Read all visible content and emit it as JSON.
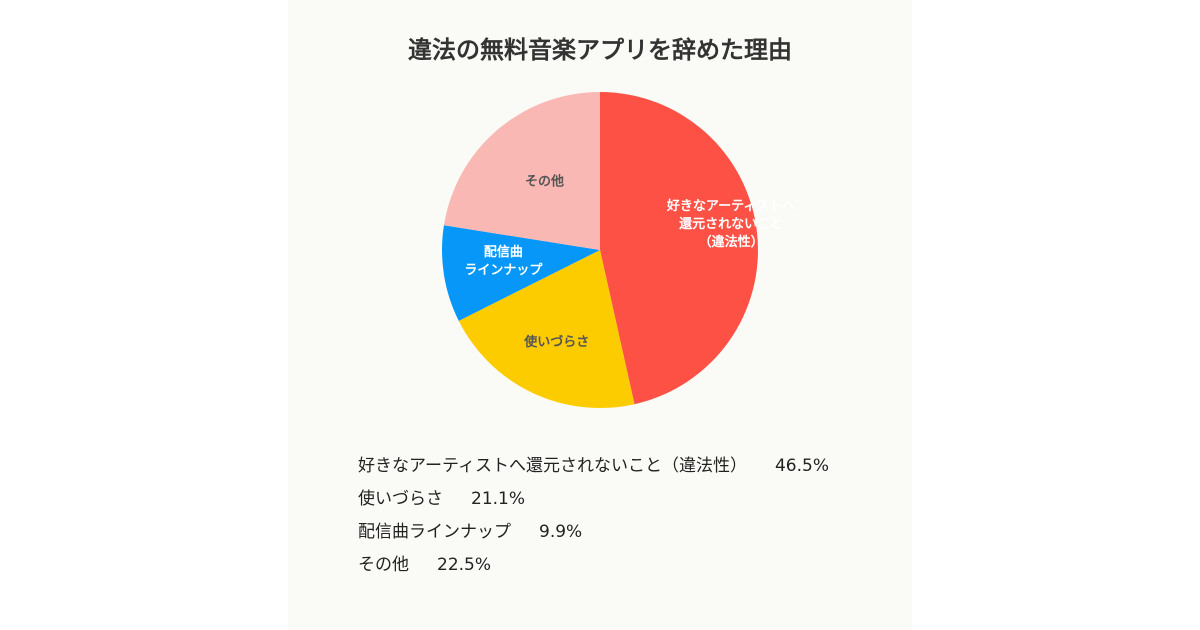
{
  "chart_data": {
    "type": "pie",
    "title": "違法の無料音楽アプリを辞めた理由",
    "slices": [
      {
        "label_lines": [
          "好きなアーティストへ",
          "還元されないこと",
          "（違法性）"
        ],
        "legend_label": "好きなアーティストへ還元されないこと（違法性）",
        "value": 46.5,
        "value_text": "46.5%",
        "color": "#fe5146",
        "label_color": "#ffffff"
      },
      {
        "label_lines": [
          "使いづらさ"
        ],
        "legend_label": "使いづらさ",
        "value": 21.1,
        "value_text": "21.1%",
        "color": "#fdcc00",
        "label_color": "#555555"
      },
      {
        "label_lines": [
          "配信曲",
          "ラインナップ"
        ],
        "legend_label": "配信曲ラインナップ",
        "value": 9.9,
        "value_text": "9.9%",
        "color": "#0797f8",
        "label_color": "#ffffff"
      },
      {
        "label_lines": [
          "その他"
        ],
        "legend_label": "その他",
        "value": 22.5,
        "value_text": "22.5%",
        "color": "#fab8b4",
        "label_color": "#555555"
      }
    ]
  }
}
